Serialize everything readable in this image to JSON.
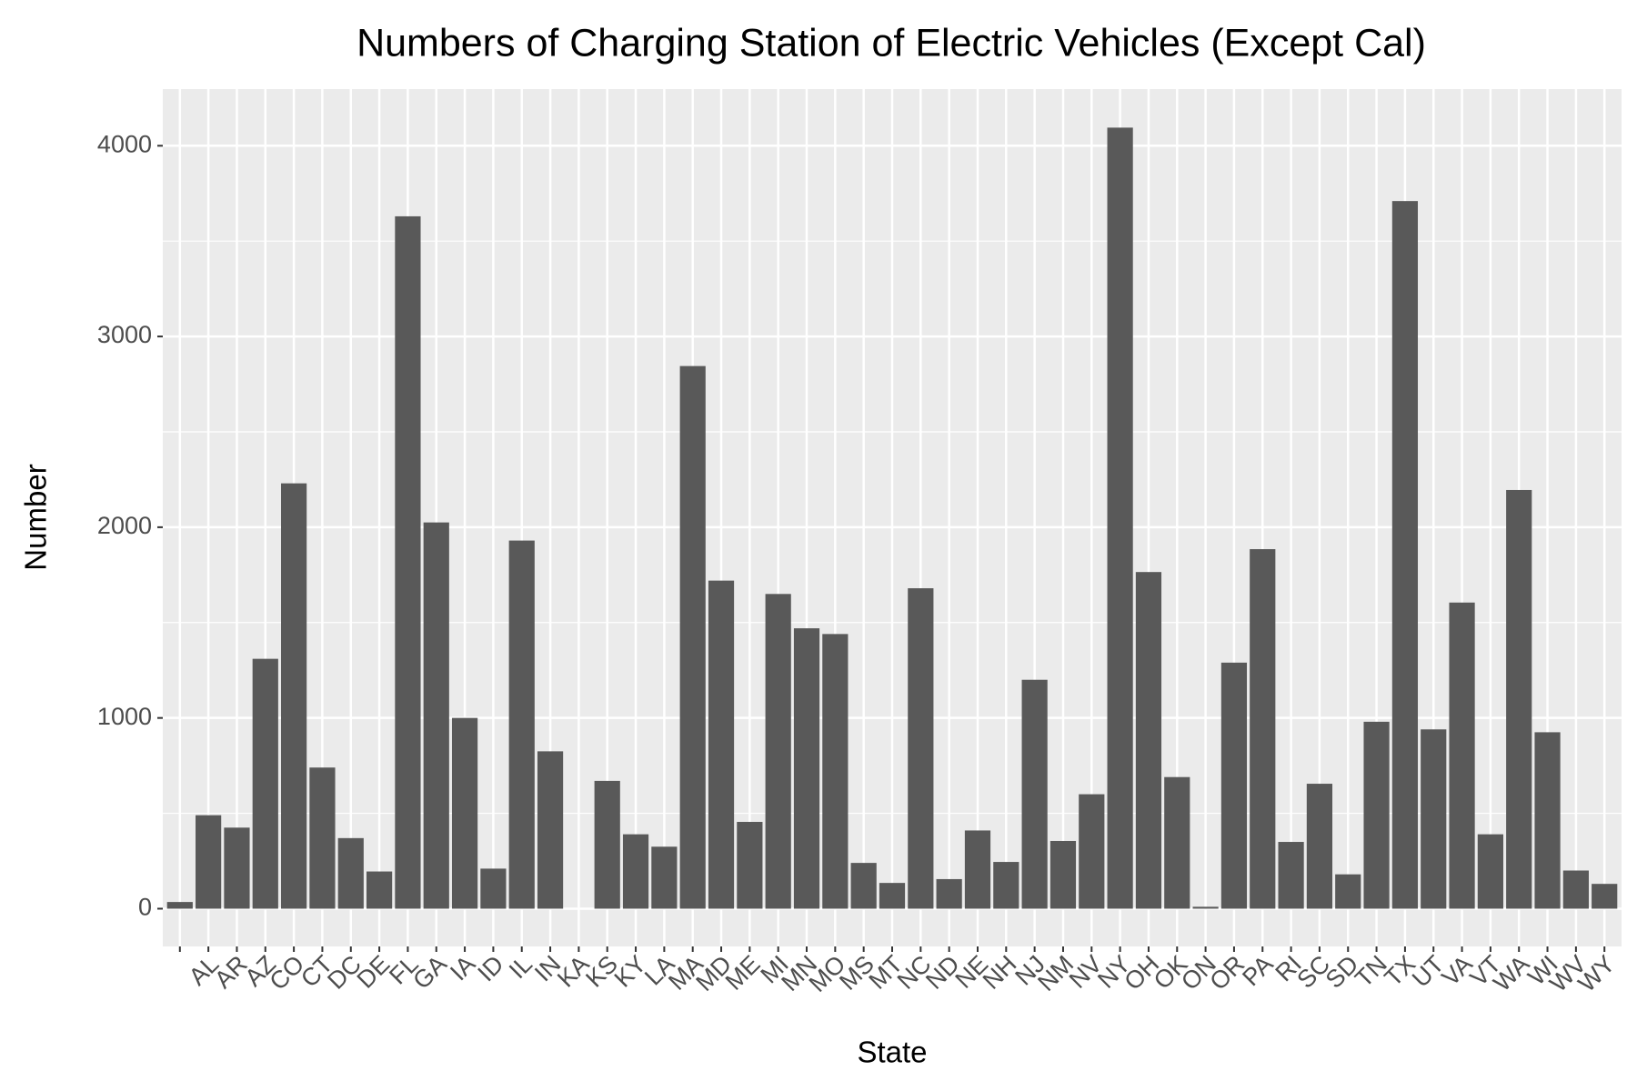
{
  "chart_data": {
    "type": "bar",
    "title": "Numbers of Charging Station of Electric Vehicles (Except Cal)",
    "x_label": "State",
    "y_label": "Number",
    "categories": [
      null,
      "AL",
      "AR",
      "AZ",
      "CO",
      "CT",
      "DC",
      "DE",
      "FL",
      "GA",
      "IA",
      "ID",
      "IL",
      "IN",
      "KA",
      "KS",
      "KY",
      "LA",
      "MA",
      "MD",
      "ME",
      "MI",
      "MN",
      "MO",
      "MS",
      "MT",
      "NC",
      "ND",
      "NE",
      "NH",
      "NJ",
      "NM",
      "NV",
      "NY",
      "OH",
      "OK",
      "ON",
      "OR",
      "PA",
      "RI",
      "SC",
      "SD",
      "TN",
      "TX",
      "UT",
      "VA",
      "VT",
      "WA",
      "WI",
      "WV",
      "WY"
    ],
    "values": [
      35,
      490,
      425,
      1310,
      2230,
      740,
      370,
      195,
      3630,
      2025,
      1000,
      210,
      1930,
      825,
      0,
      670,
      390,
      325,
      2845,
      1720,
      455,
      1650,
      1470,
      1440,
      240,
      135,
      1680,
      155,
      410,
      245,
      1200,
      355,
      600,
      4095,
      1765,
      690,
      10,
      1290,
      1885,
      350,
      655,
      180,
      980,
      3710,
      940,
      1605,
      390,
      2195,
      925,
      200,
      130
    ],
    "color": "#595959",
    "ylim": [
      -198,
      4297
    ],
    "yticks": [
      0,
      1000,
      2000,
      3000,
      4000
    ],
    "grid": true
  }
}
